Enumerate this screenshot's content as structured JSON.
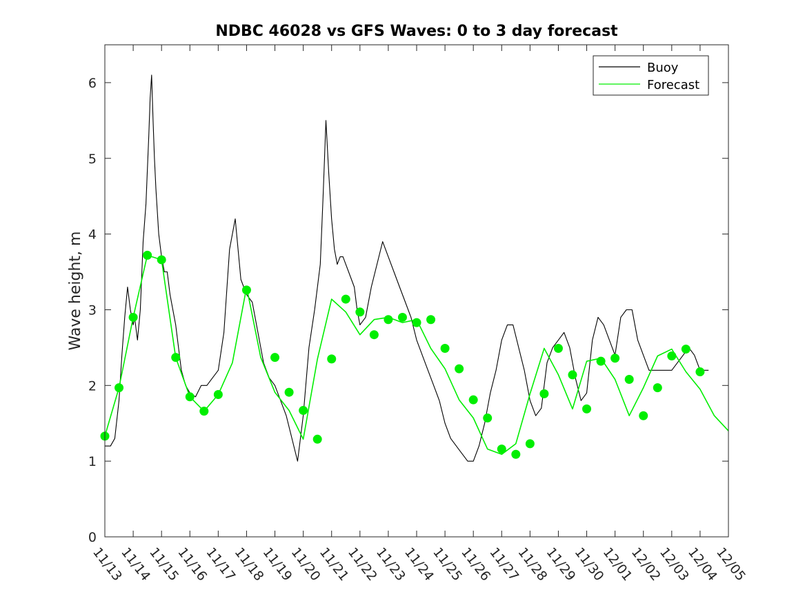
{
  "chart_data": {
    "type": "line",
    "title": "NDBC 46028 vs GFS Waves: 0 to 3 day forecast",
    "xlabel": "",
    "ylabel": "Wave height, m",
    "xlim": [
      0,
      22
    ],
    "ylim": [
      0,
      6.5
    ],
    "yticks": [
      0,
      1,
      2,
      3,
      4,
      5,
      6
    ],
    "x_tick_labels": [
      "11/13",
      "11/14",
      "11/15",
      "11/16",
      "11/17",
      "11/18",
      "11/19",
      "11/20",
      "11/21",
      "11/22",
      "11/23",
      "11/24",
      "11/25",
      "11/26",
      "11/27",
      "11/28",
      "11/29",
      "11/30",
      "12/01",
      "12/02",
      "12/03",
      "12/04",
      "12/05"
    ],
    "legend": {
      "position": "top-right",
      "entries": [
        "Buoy",
        "Forecast"
      ]
    },
    "colors": {
      "buoy": "#000000",
      "forecast": "#00ee00",
      "marker": "#00ee00"
    },
    "series": [
      {
        "name": "Buoy",
        "x": [
          0,
          0.2,
          0.35,
          0.5,
          0.6,
          0.7,
          0.8,
          0.9,
          1.0,
          1.05,
          1.15,
          1.25,
          1.35,
          1.45,
          1.55,
          1.6,
          1.65,
          1.7,
          1.75,
          1.8,
          1.9,
          2.0,
          2.1,
          2.2,
          2.3,
          2.4,
          2.5,
          2.6,
          2.7,
          2.85,
          3.0,
          3.2,
          3.4,
          3.6,
          3.8,
          4.0,
          4.2,
          4.4,
          4.6,
          4.8,
          5.0,
          5.2,
          5.3,
          5.4,
          5.5,
          5.6,
          5.8,
          6.0,
          6.2,
          6.4,
          6.6,
          6.8,
          7.0,
          7.2,
          7.4,
          7.6,
          7.7,
          7.8,
          7.9,
          8.0,
          8.1,
          8.2,
          8.3,
          8.4,
          8.5,
          8.6,
          8.7,
          8.8,
          8.9,
          9.0,
          9.2,
          9.4,
          9.6,
          9.8,
          10.0,
          10.2,
          10.4,
          10.6,
          10.8,
          11.0,
          11.2,
          11.4,
          11.6,
          11.8,
          12.0,
          12.2,
          12.4,
          12.6,
          12.8,
          13.0,
          13.2,
          13.4,
          13.6,
          13.8,
          14.0,
          14.2,
          14.4,
          14.6,
          14.8,
          15.0,
          15.2,
          15.4,
          15.6,
          15.8,
          16.0,
          16.2,
          16.4,
          16.6,
          16.8,
          17.0,
          17.2,
          17.4,
          17.6,
          17.8,
          18.0,
          18.2,
          18.4,
          18.6,
          18.8,
          19.0,
          19.2,
          19.4,
          19.6,
          19.8,
          20.0,
          20.2,
          20.4,
          20.6,
          20.8,
          21.0,
          21.2,
          21.3
        ],
        "values": [
          1.2,
          1.2,
          1.3,
          1.8,
          2.4,
          2.9,
          3.3,
          3.0,
          2.8,
          2.9,
          2.6,
          3.0,
          3.9,
          4.4,
          5.3,
          5.8,
          6.1,
          5.5,
          5.0,
          4.6,
          4.0,
          3.7,
          3.5,
          3.5,
          3.2,
          3.0,
          2.8,
          2.5,
          2.2,
          2.0,
          1.9,
          1.85,
          2.0,
          2.0,
          2.1,
          2.2,
          2.7,
          3.8,
          4.2,
          3.4,
          3.2,
          3.1,
          2.9,
          2.7,
          2.5,
          2.3,
          2.1,
          2.0,
          1.8,
          1.6,
          1.3,
          1.0,
          1.6,
          2.5,
          3.0,
          3.6,
          4.5,
          5.5,
          4.8,
          4.2,
          3.8,
          3.6,
          3.7,
          3.7,
          3.6,
          3.5,
          3.4,
          3.3,
          3.0,
          2.8,
          2.9,
          3.3,
          3.6,
          3.9,
          3.7,
          3.5,
          3.3,
          3.1,
          2.9,
          2.6,
          2.4,
          2.2,
          2.0,
          1.8,
          1.5,
          1.3,
          1.2,
          1.1,
          1.0,
          1.0,
          1.2,
          1.5,
          1.9,
          2.2,
          2.6,
          2.8,
          2.8,
          2.5,
          2.2,
          1.8,
          1.6,
          1.7,
          2.3,
          2.5,
          2.6,
          2.7,
          2.5,
          2.1,
          1.8,
          1.9,
          2.6,
          2.9,
          2.8,
          2.6,
          2.4,
          2.9,
          3.0,
          3.0,
          2.6,
          2.4,
          2.2,
          2.2,
          2.2,
          2.2,
          2.2,
          2.3,
          2.4,
          2.5,
          2.4,
          2.2,
          2.2,
          2.2
        ]
      },
      {
        "name": "Forecast",
        "x": [
          0,
          0.5,
          1,
          1.5,
          2,
          2.5,
          3,
          3.5,
          4,
          4.5,
          5,
          5.5,
          6,
          6.5,
          7,
          7.5,
          8,
          8.5,
          9,
          9.5,
          10,
          10.5,
          11,
          11.5,
          12,
          12.5,
          13,
          13.5,
          14,
          14.5,
          15,
          15.5,
          16,
          16.5,
          17,
          17.5,
          18,
          18.5,
          19,
          19.5,
          20,
          20.5,
          21,
          21.5,
          22
        ],
        "values": [
          1.33,
          1.97,
          2.9,
          3.72,
          3.66,
          2.37,
          1.85,
          1.66,
          1.88,
          2.3,
          3.3,
          2.37,
          1.91,
          1.67,
          1.29,
          2.35,
          3.14,
          2.97,
          2.67,
          2.87,
          2.9,
          2.83,
          2.87,
          2.49,
          2.22,
          1.81,
          1.57,
          1.16,
          1.09,
          1.23,
          1.89,
          2.49,
          2.14,
          1.69,
          2.32,
          2.36,
          2.08,
          1.6,
          1.97,
          2.39,
          2.48,
          2.18,
          1.95,
          1.6,
          1.4
        ]
      }
    ],
    "markers": {
      "name": "Forecast 0-hour",
      "x": [
        0,
        0.5,
        1,
        1.5,
        2,
        2.5,
        3,
        3.5,
        4,
        5,
        6,
        6.5,
        7,
        7.5,
        8,
        8.5,
        9,
        9.5,
        10,
        10.5,
        11,
        11.5,
        12,
        12.5,
        13,
        13.5,
        14,
        14.5,
        15,
        15.5,
        16,
        16.5,
        17,
        17.5,
        18,
        18.5,
        19,
        19.5,
        20,
        20.5,
        21
      ],
      "values": [
        1.33,
        1.97,
        2.9,
        3.72,
        3.66,
        2.37,
        1.85,
        1.66,
        1.88,
        3.26,
        2.37,
        1.91,
        1.67,
        1.29,
        2.35,
        3.14,
        2.97,
        2.67,
        2.87,
        2.9,
        2.83,
        2.87,
        2.49,
        2.22,
        1.81,
        1.57,
        1.16,
        1.09,
        1.23,
        1.89,
        2.49,
        2.14,
        1.69,
        2.32,
        2.36,
        2.08,
        1.6,
        1.97,
        2.39,
        2.48,
        2.18
      ]
    }
  }
}
